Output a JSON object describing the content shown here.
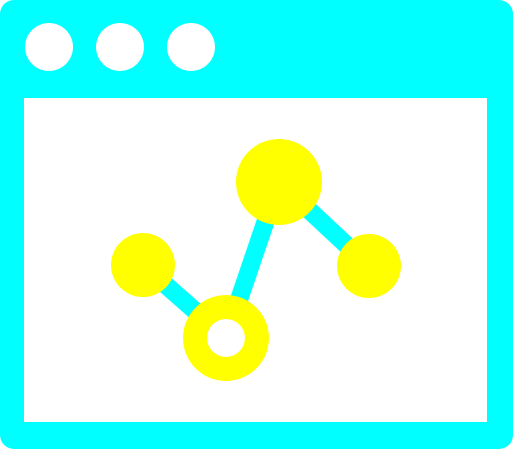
{
  "colors": {
    "frame": "#00FFFF",
    "window_bg": "#FFFFFF",
    "node": "#FFFF00",
    "edge": "#00FFFF"
  },
  "icons": {
    "window": "browser-window-icon",
    "traffic_lights": [
      "window-dot-icon",
      "window-dot-icon",
      "window-dot-icon"
    ],
    "graph": "line-chart-graph-icon"
  }
}
